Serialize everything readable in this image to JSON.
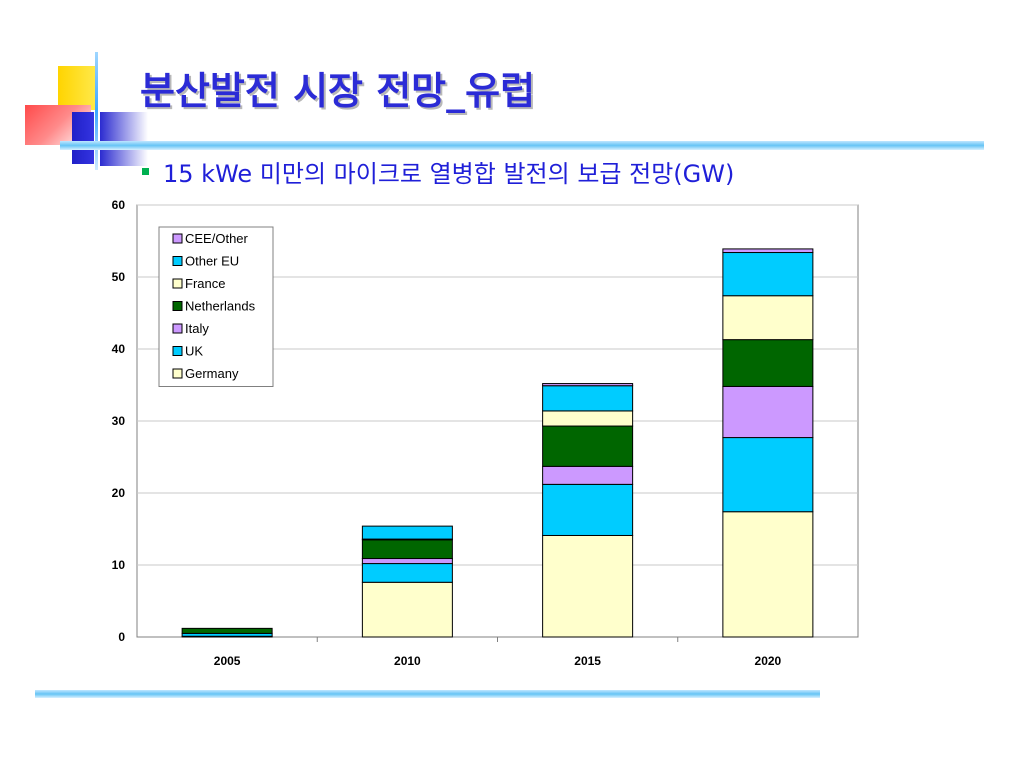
{
  "slide": {
    "title": "분산발전 시장 전망_유럽",
    "subtitle": "15 kWe 미만의 마이크로 열병합 발전의 보급 전망(GW)"
  },
  "chart_data": {
    "type": "bar",
    "stacked": true,
    "categories": [
      "2005",
      "2010",
      "2015",
      "2020"
    ],
    "ylim": [
      0,
      60
    ],
    "yticks": [
      0,
      10,
      20,
      30,
      40,
      50,
      60
    ],
    "grid": true,
    "legend_position": "top-left",
    "series": [
      {
        "name": "Germany",
        "color": "#ffffcc",
        "values": [
          0.1,
          7.6,
          14.1,
          17.4
        ]
      },
      {
        "name": "UK",
        "color": "#00ccff",
        "values": [
          0.4,
          2.6,
          7.1,
          10.3
        ]
      },
      {
        "name": "Italy",
        "color": "#cc99ff",
        "values": [
          0.0,
          0.7,
          2.5,
          7.1
        ]
      },
      {
        "name": "Netherlands",
        "color": "#006600",
        "values": [
          0.7,
          2.6,
          5.6,
          6.5
        ]
      },
      {
        "name": "France",
        "color": "#ffffcc",
        "values": [
          0.0,
          0.1,
          2.1,
          6.1
        ]
      },
      {
        "name": "Other EU",
        "color": "#00ccff",
        "values": [
          0.0,
          1.8,
          3.5,
          6.0
        ]
      },
      {
        "name": "CEE/Other",
        "color": "#cc99ff",
        "values": [
          0.0,
          0.0,
          0.3,
          0.5
        ]
      }
    ]
  }
}
